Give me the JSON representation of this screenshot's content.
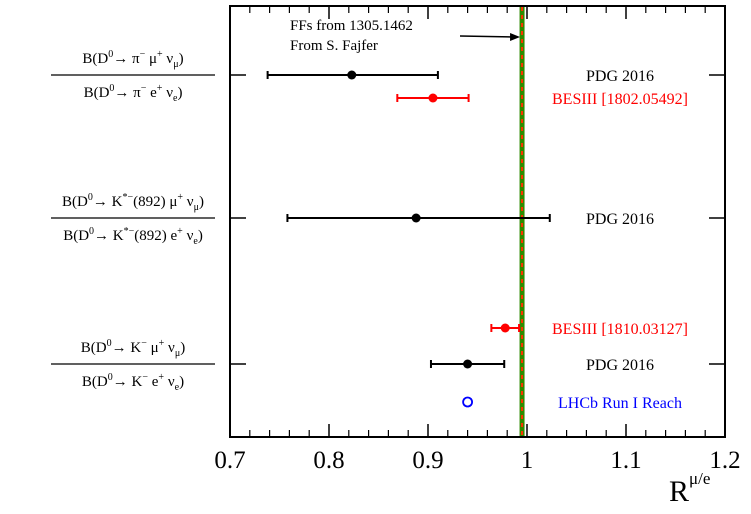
{
  "chart_data": {
    "type": "scatter",
    "xlim": [
      0.7,
      1.2
    ],
    "x_ticks": [
      "0.7",
      "0.8",
      "0.9",
      "1",
      "1.1",
      "1.2"
    ],
    "x_minor_ticks": 5,
    "xlabel": {
      "base": "R",
      "sup": "μ/e"
    },
    "reference_line": {
      "x": 0.995,
      "colors": [
        "#2e8b00",
        "#ff3300"
      ],
      "annotation": {
        "line1": "FFs from 1305.1462",
        "line2": "From S. Fajfer"
      }
    },
    "rows": [
      {
        "numerator": {
          "pre": "B(D",
          "sup1": "0",
          "mid": "→ π",
          "sup2": "−",
          "post": " μ",
          "sup3": "+",
          "nu": " ν",
          "sub": "μ",
          "end": ")"
        },
        "denominator": {
          "pre": "B(D",
          "sup1": "0",
          "mid": "→ π",
          "sup2": "−",
          "post": " e",
          "sup3": "+",
          "nu": " ν",
          "sub": "e",
          "end": ")"
        },
        "points": [
          {
            "label": "PDG 2016",
            "x": 0.823,
            "xerr_lo": 0.085,
            "xerr_hi": 0.087,
            "color": "#000000",
            "marker": "filled-circle"
          },
          {
            "label": "BESIII [1802.05492]",
            "x": 0.905,
            "xerr_lo": 0.036,
            "xerr_hi": 0.036,
            "color": "#ff0000",
            "marker": "filled-circle"
          }
        ]
      },
      {
        "numerator": {
          "pre": "B(D",
          "sup1": "0",
          "mid": "→ K",
          "sup2": "*−",
          "post": "(892) μ",
          "sup3": "+",
          "nu": " ν",
          "sub": "μ",
          "end": ")"
        },
        "denominator": {
          "pre": "B(D",
          "sup1": "0",
          "mid": "→ K",
          "sup2": "*−",
          "post": "(892) e",
          "sup3": "+",
          "nu": " ν",
          "sub": "e",
          "end": ")"
        },
        "points": [
          {
            "label": "PDG 2016",
            "x": 0.888,
            "xerr_lo": 0.13,
            "xerr_hi": 0.135,
            "color": "#000000",
            "marker": "filled-circle"
          }
        ]
      },
      {
        "numerator": {
          "pre": "B(D",
          "sup1": "0",
          "mid": "→ K",
          "sup2": "−",
          "post": " μ",
          "sup3": "+",
          "nu": " ν",
          "sub": "μ",
          "end": ")"
        },
        "denominator": {
          "pre": "B(D",
          "sup1": "0",
          "mid": "→ K",
          "sup2": "−",
          "post": " e",
          "sup3": "+",
          "nu": " ν",
          "sub": "e",
          "end": ")"
        },
        "points": [
          {
            "label": "BESIII [1810.03127]",
            "x": 0.978,
            "xerr_lo": 0.014,
            "xerr_hi": 0.014,
            "color": "#ff0000",
            "marker": "filled-circle"
          },
          {
            "label": "PDG 2016",
            "x": 0.94,
            "xerr_lo": 0.037,
            "xerr_hi": 0.037,
            "color": "#000000",
            "marker": "filled-circle"
          },
          {
            "label": "LHCb Run I Reach",
            "x": 0.94,
            "xerr_lo": 0.003,
            "xerr_hi": 0.003,
            "color": "#0000ff",
            "marker": "open-circle"
          }
        ]
      }
    ]
  }
}
